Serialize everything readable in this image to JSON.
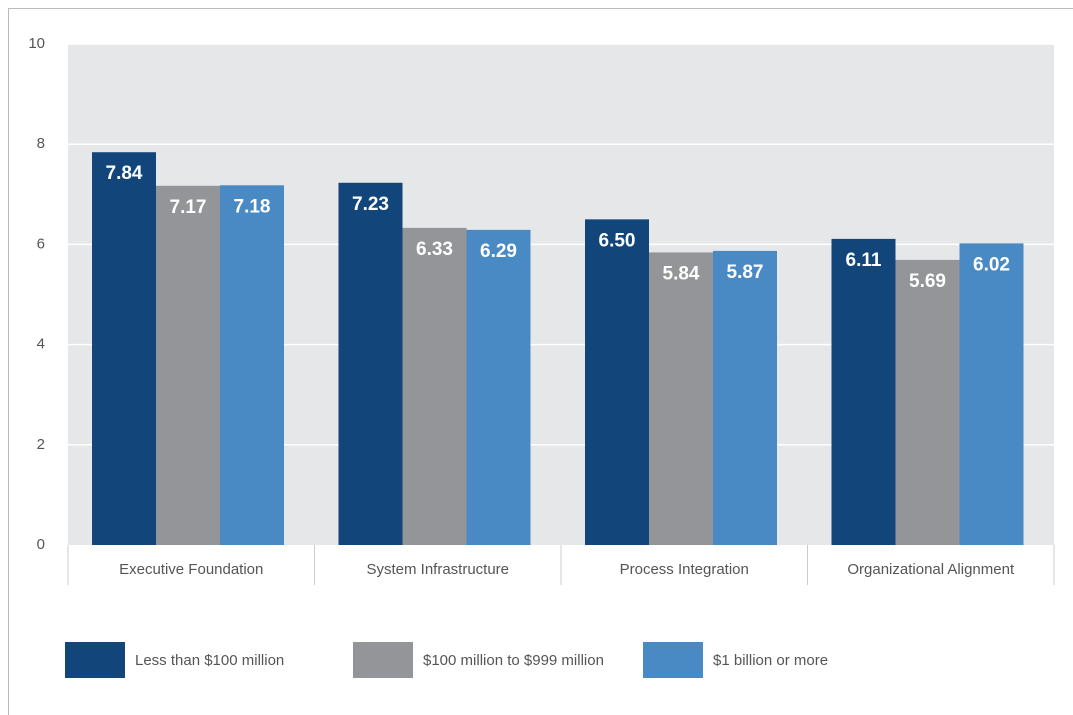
{
  "chart_data": {
    "type": "bar",
    "categories": [
      "Executive Foundation",
      "System Infrastructure",
      "Process Integration",
      "Organizational Alignment"
    ],
    "series": [
      {
        "name": "Less than $100 million",
        "color": "#12467a",
        "values": [
          7.84,
          7.23,
          6.5,
          6.11
        ],
        "value_labels": [
          "7.84",
          "7.23",
          "6.50",
          "6.11"
        ]
      },
      {
        "name": "$100 million to $999 million",
        "color": "#939598",
        "values": [
          7.17,
          6.33,
          5.84,
          5.69
        ],
        "value_labels": [
          "7.17",
          "6.33",
          "5.84",
          "5.69"
        ]
      },
      {
        "name": "$1 billion or more",
        "color": "#4a8ac4",
        "values": [
          7.18,
          6.29,
          5.87,
          6.02
        ],
        "value_labels": [
          "7.18",
          "6.29",
          "5.87",
          "6.02"
        ]
      }
    ],
    "ylim": [
      0,
      10
    ],
    "yticks": [
      0,
      2,
      4,
      6,
      8,
      10
    ],
    "grid": true,
    "legend": "bottom"
  }
}
